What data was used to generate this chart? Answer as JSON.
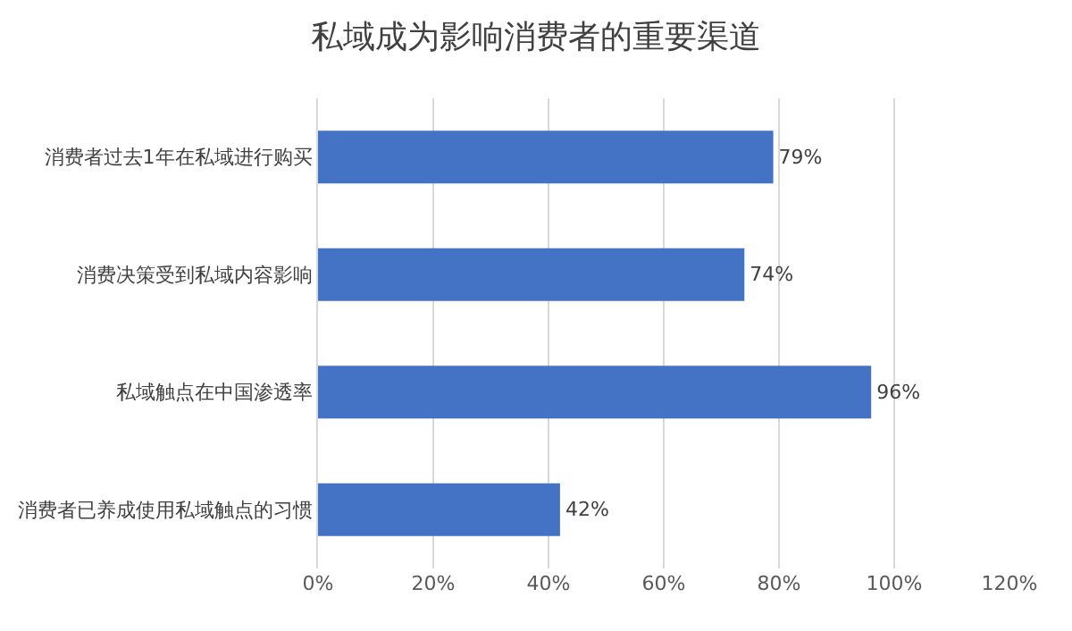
{
  "chart_data": {
    "type": "bar",
    "orientation": "horizontal",
    "title": "私域成为影响消费者的重要渠道",
    "categories": [
      "消费者过去1年在私域进行购买",
      "消费决策受到私域内容影响",
      "私域触点在中国渗透率",
      "消费者已养成使用私域触点的习惯"
    ],
    "values": [
      79,
      74,
      96,
      42
    ],
    "value_labels": [
      "79%",
      "74%",
      "96%",
      "42%"
    ],
    "color": "#4472c4",
    "xlim": [
      0,
      120
    ],
    "xticks": [
      {
        "value": 0,
        "label": "0%"
      },
      {
        "value": 20,
        "label": "20%"
      },
      {
        "value": 40,
        "label": "40%"
      },
      {
        "value": 60,
        "label": "60%"
      },
      {
        "value": 80,
        "label": "80%"
      },
      {
        "value": 100,
        "label": "100%"
      },
      {
        "value": 120,
        "label": "120%"
      }
    ],
    "grid": "x",
    "legend": false
  }
}
